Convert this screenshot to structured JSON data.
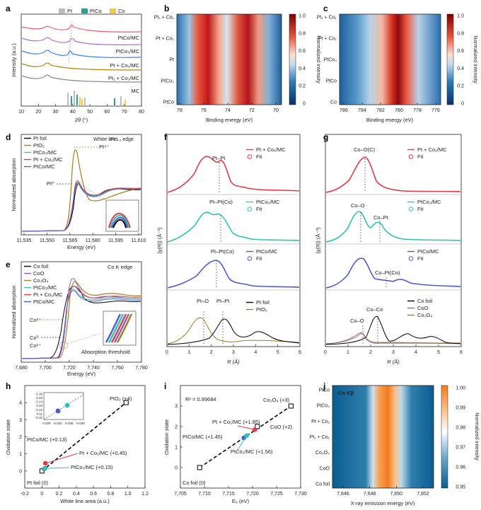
{
  "figure": {
    "panel_letters": [
      "a",
      "b",
      "c",
      "d",
      "e",
      "f",
      "g",
      "h",
      "i",
      "j"
    ]
  },
  "panel_a": {
    "legend": [
      "Pt",
      "PtCo",
      "Co"
    ],
    "legend_colors": [
      "#bdbdbd",
      "#2a9d8f",
      "#f2c94c"
    ],
    "curve_labels": [
      "PtCo/MC",
      "PtCo₃/MC",
      "Pt + Co₁/MC",
      "Pt₁ + Co₁/MC",
      "MC"
    ],
    "curve_colors": [
      "#e85d75",
      "#b86ae0",
      "#3b82f6",
      "#b8860b",
      "#8a8a8a"
    ],
    "xlabel": "2θ (°)",
    "ylabel": "Intensity (a.u.)",
    "xticks": [
      "10",
      "20",
      "30",
      "40",
      "50",
      "60",
      "70",
      "80"
    ]
  },
  "panel_b": {
    "ylabels": [
      "Pt₁ + Co₁",
      "Pt + Co₁",
      "Pt",
      "PtCo₃",
      "PtCo"
    ],
    "xticks": [
      "78",
      "76",
      "74",
      "72",
      "70"
    ],
    "xlabel": "Binding energy (eV)",
    "cbar_label": "Normalized intensity",
    "cbar_ticks": [
      "1.0",
      "0.8",
      "0.6",
      "0.4",
      "0.2",
      "0"
    ]
  },
  "panel_c": {
    "ylabels": [
      "Pt₁ + Co₁",
      "Pt + Co₁",
      "PtCo₃",
      "PtCo",
      "Co"
    ],
    "xticks": [
      "786",
      "784",
      "782",
      "780",
      "778",
      "776"
    ],
    "xlabel": "Binding energy (eV)",
    "cbar_label": "Normalized intensity",
    "cbar_ticks": [
      "1.0",
      "0.8",
      "0.6",
      "0.4",
      "0.2",
      "0"
    ]
  },
  "panel_d": {
    "legend": [
      "Pt foil",
      "PtO₂",
      "PtCo₃/MC",
      "Pt + Co₁/MC",
      "PtCo/MC"
    ],
    "legend_colors": [
      "#000000",
      "#a57c1b",
      "#2ec4b6",
      "#e63946",
      "#4f5bd5"
    ],
    "edge_label": "Pt L₃ edge",
    "white_line": "White line",
    "pt4": "Pt⁴⁺",
    "pt0": "Pt⁰",
    "xticks": [
      "11,535",
      "11,550",
      "11,565",
      "11,580",
      "11,595",
      "11,610"
    ],
    "xlabel": "Energy (eV)",
    "ylabel": "Normalized absorption"
  },
  "panel_e": {
    "legend": [
      "Co foil",
      "CoO",
      "Co₃O₄",
      "PtCo₃/MC",
      "Pt + Co₁/MC",
      "PtCo/MC"
    ],
    "legend_colors": [
      "#000000",
      "#8b5fbf",
      "#a57c1b",
      "#2ec4b6",
      "#e63946",
      "#4f5bd5"
    ],
    "edge_label": "Co K edge",
    "co3": "Co³⁺",
    "co0": "Co⁰",
    "co2": "Co²⁺",
    "threshold": "Absorption threshold",
    "xticks": [
      "7,680",
      "7,700",
      "7,720",
      "7,740",
      "7,760",
      "7,780"
    ],
    "xlabel": "Energy (eV)",
    "ylabel": "Normalized absorption"
  },
  "panel_f": {
    "legends": [
      [
        "Pt + Co₁/MC",
        "Fit"
      ],
      [
        "PtCo₃/MC",
        "Fit"
      ],
      [
        "PtCo/MC",
        "Fit"
      ],
      [
        "Pt foil",
        "PtO₂"
      ]
    ],
    "annotations": [
      "Pt–Pt",
      "Pt–Pt(Co)",
      "Pt–Pt(Co)",
      "Pt–O",
      "Pt–Pt"
    ],
    "xticks": [
      "0",
      "1",
      "2",
      "3",
      "4",
      "5",
      "6"
    ],
    "xlabel": "R (Å)",
    "ylabel": "|χ(R)| (Å⁻³)"
  },
  "panel_g": {
    "legends": [
      [
        "Pt + Co₁/MC",
        "Fit"
      ],
      [
        "PtCo₃/MC",
        "Fit"
      ],
      [
        "PtCo/MC",
        "Fit"
      ],
      [
        "Co foil",
        "CoO",
        "Co₃O₄"
      ]
    ],
    "annotations": [
      "Co–O(C)",
      "Co–O",
      "Co–Pt",
      "Co–Pt(Co)",
      "Co–Co",
      "Co–O"
    ],
    "xticks": [
      "0",
      "1",
      "2",
      "3",
      "4",
      "5",
      "6"
    ],
    "xlabel": "R (Å)",
    "ylabel": "|χ(R)| (Å⁻³)"
  },
  "panel_j": {
    "title": "Co Kβ",
    "ylabels": [
      "PtCo",
      "PtCo₃",
      "Pt + Co₁",
      "Pt₁ + Co₁",
      "Co₃O₄",
      "CoO",
      "Co foil"
    ],
    "xticks": [
      "7,646",
      "7,648",
      "7,650",
      "7,652"
    ],
    "xlabel": "X-ray emission energy (eV)",
    "cbar_label": "Normalized intensity",
    "cbar_ticks": [
      "1.00",
      "0.99",
      "0.98",
      "0.97",
      "0.96",
      "0.95"
    ]
  },
  "chart_data": [
    {
      "panel": "h",
      "type": "scatter",
      "xlabel": "White line area (a.u.)",
      "ylabel": "Oxidation state",
      "xlim": [
        -0.2,
        1.2
      ],
      "ylim": [
        -1,
        5
      ],
      "xticks": [
        "-0.2",
        "0",
        "0.2",
        "0.4",
        "0.6",
        "0.8",
        "1.0",
        "1.2"
      ],
      "yticks": [
        "0",
        "1",
        "2",
        "3",
        "4"
      ],
      "points": [
        {
          "label": "Pt foil (0)",
          "x": 0.0,
          "y": 0.0,
          "color": "#000000"
        },
        {
          "label": "PtO₂ (+4)",
          "x": 0.98,
          "y": 4.0,
          "color": "#000000"
        },
        {
          "label": "PtCo/MC (+0.13)",
          "x": 0.028,
          "y": 0.13,
          "color": "#4f5bd5"
        },
        {
          "label": "Pt + Co₁/MC (+0.45)",
          "x": 0.04,
          "y": 0.45,
          "color": "#e63946"
        },
        {
          "label": "PtCo₃/MC (+0.15)",
          "x": 0.036,
          "y": 0.15,
          "color": "#2ec4b6"
        }
      ],
      "inset": {
        "xticks": [
          "0.028",
          "0.032",
          "0.036",
          "0.040"
        ],
        "yticks": [
          "0.10",
          "0.11",
          "0.12",
          "0.13",
          "0.14",
          "0.15",
          "0.16"
        ]
      }
    },
    {
      "panel": "i",
      "type": "scatter",
      "xlabel": "E₀ (eV)",
      "ylabel": "Oxidation state",
      "r2": "R² = 0.99684",
      "xlim": [
        7705,
        7730
      ],
      "ylim": [
        -1,
        4
      ],
      "xticks": [
        "7,705",
        "7,710",
        "7,715",
        "7,720",
        "7,725",
        "7,730"
      ],
      "yticks": [
        "0",
        "1",
        "2",
        "3"
      ],
      "points": [
        {
          "label": "Co foil (0)",
          "x": 7709.0,
          "y": 0.0,
          "color": "#000000"
        },
        {
          "label": "Co₃O₄ (+3)",
          "x": 7728.0,
          "y": 3.0,
          "color": "#000000"
        },
        {
          "label": "CoO (+2)",
          "x": 7721.0,
          "y": 2.0,
          "color": "#000000"
        },
        {
          "label": "Pt + Co₁/MC (+1.85)",
          "x": 7720.5,
          "y": 1.85,
          "color": "#e63946"
        },
        {
          "label": "PtCo/MC (+1.45)",
          "x": 7718.2,
          "y": 1.45,
          "color": "#4f5bd5"
        },
        {
          "label": "PtCo₃/MC (+1.56)",
          "x": 7718.8,
          "y": 1.56,
          "color": "#2ec4b6"
        }
      ]
    }
  ]
}
